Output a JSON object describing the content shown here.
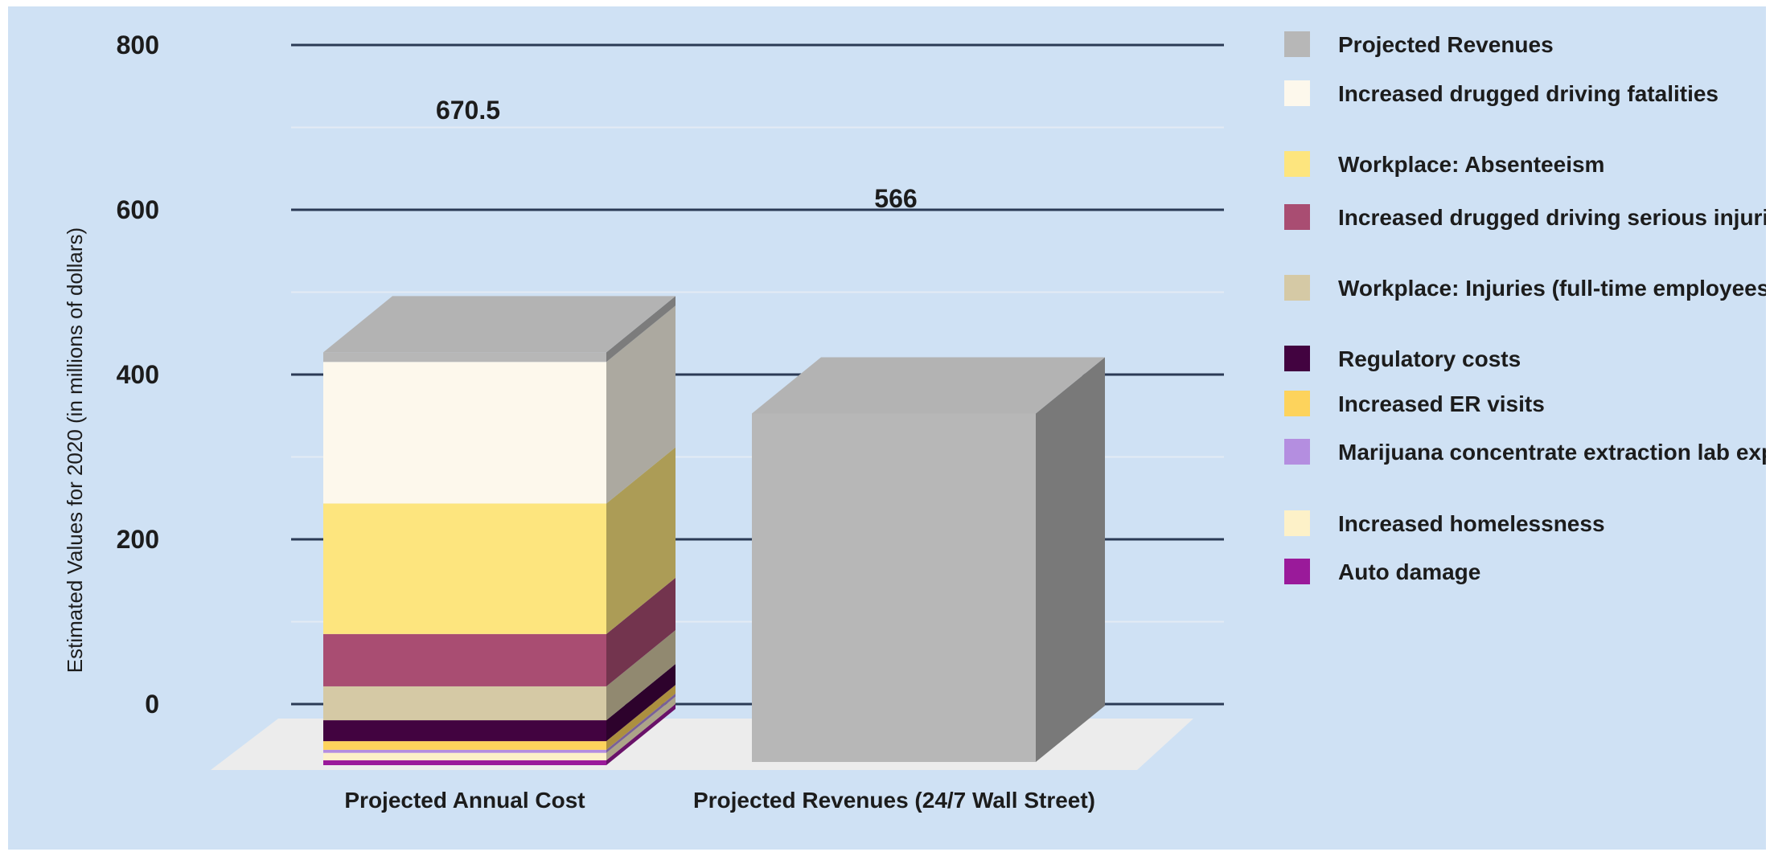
{
  "chart_data": {
    "type": "bar",
    "stacked": true,
    "view": "3d",
    "ylabel": "Estimated Values for 2020 (in millions of dollars)",
    "ylim": [
      0,
      800
    ],
    "yticks": [
      0,
      200,
      400,
      600,
      800
    ],
    "grid": true,
    "legend_position": "right",
    "categories": [
      "Projected Annual Cost",
      "Projected Revenues (24/7 Wall Street)"
    ],
    "totals": [
      "670.5",
      "566"
    ],
    "series": [
      {
        "name": "Auto damage",
        "color": "#9a1a9a",
        "values": [
          8,
          0
        ]
      },
      {
        "name": "Increased homelessness",
        "color": "#fdf1c8",
        "values": [
          12,
          0
        ]
      },
      {
        "name": "Marijuana concentrate extraction lab explosions",
        "color": "#b48ee0",
        "values": [
          5,
          0
        ]
      },
      {
        "name": "Increased ER visits",
        "color": "#fdd35c",
        "values": [
          14,
          0
        ]
      },
      {
        "name": "Regulatory costs",
        "color": "#420340",
        "values": [
          34,
          0
        ]
      },
      {
        "name": "Workplace: Injuries (full-time employees)",
        "color": "#d5c9a5",
        "values": [
          55,
          0
        ]
      },
      {
        "name": "Increased drugged driving serious injuries",
        "color": "#a94d72",
        "values": [
          85,
          0
        ]
      },
      {
        "name": "Workplace: Absenteeism",
        "color": "#fde57e",
        "values": [
          212,
          0
        ]
      },
      {
        "name": "Increased drugged driving fatalities",
        "color": "#fdf8ec",
        "values": [
          230,
          0
        ]
      },
      {
        "name": "Projected Revenues",
        "color": "#b7b7b7",
        "values": [
          15.5,
          566
        ]
      }
    ],
    "legend": [
      {
        "label": "Projected Revenues",
        "color": "#b7b7b7"
      },
      {
        "label": "Increased drugged driving fatalities",
        "color": "#fdf8ec"
      },
      {
        "label": "Workplace: Absenteeism",
        "color": "#fde57e"
      },
      {
        "label": "Increased drugged driving serious injuries",
        "color": "#a94d72"
      },
      {
        "label": "Workplace: Injuries (full-time employees)",
        "color": "#d5c9a5"
      },
      {
        "label": "Regulatory costs",
        "color": "#420340"
      },
      {
        "label": "Increased ER visits",
        "color": "#fdd35c"
      },
      {
        "label": "Marijuana concentrate extraction lab explosions",
        "color": "#b48ee0"
      },
      {
        "label": "Increased homelessness",
        "color": "#fdf1c8"
      },
      {
        "label": "Auto damage",
        "color": "#9a1a9a"
      }
    ]
  }
}
